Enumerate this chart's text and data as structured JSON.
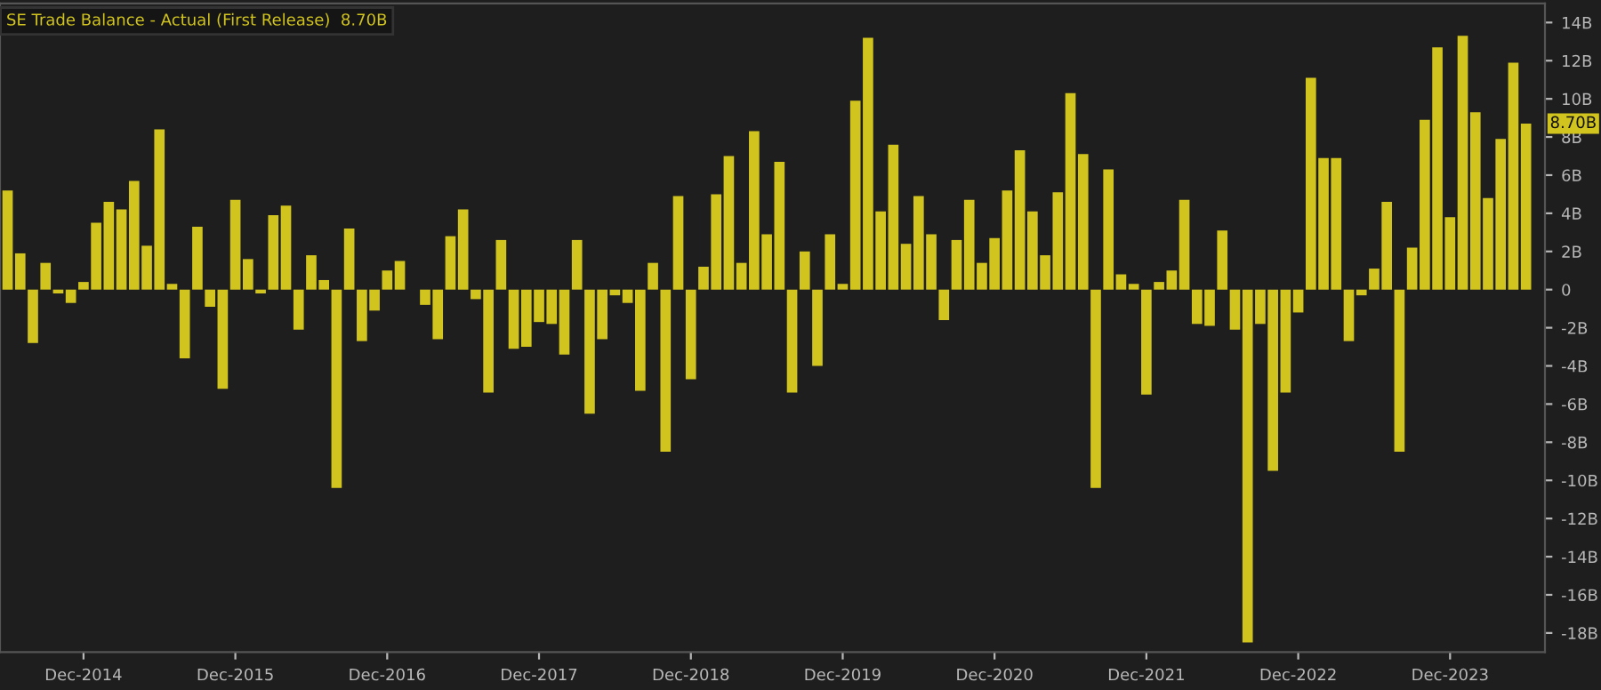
{
  "chart_data": {
    "type": "bar",
    "categories": [
      null,
      null,
      null,
      null,
      null,
      null,
      "Dec-2014",
      null,
      null,
      null,
      null,
      null,
      null,
      null,
      null,
      null,
      null,
      null,
      "Dec-2015",
      null,
      null,
      null,
      null,
      null,
      null,
      null,
      null,
      null,
      null,
      null,
      "Dec-2016",
      null,
      null,
      null,
      null,
      null,
      null,
      null,
      null,
      null,
      null,
      null,
      "Dec-2017",
      null,
      null,
      null,
      null,
      null,
      null,
      null,
      null,
      null,
      null,
      null,
      "Dec-2018",
      null,
      null,
      null,
      null,
      null,
      null,
      null,
      null,
      null,
      null,
      null,
      "Dec-2019",
      null,
      null,
      null,
      null,
      null,
      null,
      null,
      null,
      null,
      null,
      null,
      "Dec-2020",
      null,
      null,
      null,
      null,
      null,
      null,
      null,
      null,
      null,
      null,
      null,
      "Dec-2021",
      null,
      null,
      null,
      null,
      null,
      null,
      null,
      null,
      null,
      null,
      null,
      "Dec-2022",
      null,
      null,
      null,
      null,
      null,
      null,
      null,
      null,
      null,
      null,
      null,
      "Dec-2023",
      null,
      null,
      null,
      null,
      null,
      null
    ],
    "series": [
      {
        "name": "SE Trade Balance - Actual (First Release)",
        "color": "#d2c41f",
        "values": [
          5.2,
          1.9,
          -2.8,
          1.4,
          -0.2,
          -0.7,
          0.4,
          3.5,
          4.6,
          4.2,
          5.7,
          2.3,
          8.4,
          0.3,
          -3.6,
          3.3,
          -0.9,
          -5.2,
          4.7,
          1.6,
          -0.2,
          3.9,
          4.4,
          -2.1,
          1.8,
          0.5,
          -10.4,
          3.2,
          -2.7,
          -1.1,
          1.0,
          1.5,
          null,
          -0.8,
          -2.6,
          2.8,
          4.2,
          -0.5,
          -5.4,
          2.6,
          -3.1,
          -3.0,
          -1.7,
          -1.8,
          -3.4,
          2.6,
          -6.5,
          -2.6,
          -0.3,
          -0.7,
          -5.3,
          1.4,
          -8.5,
          4.9,
          -4.7,
          1.2,
          5.0,
          7.0,
          1.4,
          8.3,
          2.9,
          6.7,
          -5.4,
          2.0,
          -4.0,
          2.9,
          0.3,
          9.9,
          13.2,
          4.1,
          7.6,
          2.4,
          4.9,
          2.9,
          -1.6,
          2.6,
          4.7,
          1.4,
          2.7,
          5.2,
          7.3,
          4.1,
          1.8,
          5.1,
          10.3,
          7.1,
          -10.4,
          6.3,
          0.8,
          0.3,
          -5.5,
          0.4,
          1.0,
          4.7,
          -1.8,
          -1.9,
          3.1,
          -2.1,
          -18.5,
          -1.8,
          -9.5,
          -5.4,
          -1.2,
          11.1,
          6.9,
          6.9,
          -2.7,
          -0.3,
          1.1,
          4.6,
          -8.5,
          2.2,
          8.9,
          12.7,
          3.8,
          13.3,
          9.3,
          4.8,
          7.9,
          11.9,
          8.7
        ]
      }
    ],
    "ylim": [
      -19,
      15
    ],
    "yticks": [
      {
        "value": -18,
        "label": "-18B"
      },
      {
        "value": -16,
        "label": "-16B"
      },
      {
        "value": -14,
        "label": "-14B"
      },
      {
        "value": -12,
        "label": "-12B"
      },
      {
        "value": -10,
        "label": "-10B"
      },
      {
        "value": -8,
        "label": "-8B"
      },
      {
        "value": -6,
        "label": "-6B"
      },
      {
        "value": -4,
        "label": "-4B"
      },
      {
        "value": -2,
        "label": "-2B"
      },
      0,
      {
        "value": 2,
        "label": "2B"
      },
      {
        "value": 4,
        "label": "4B"
      },
      {
        "value": 6,
        "label": "6B"
      },
      {
        "value": 8,
        "label": "8B"
      },
      {
        "value": 10,
        "label": "10B"
      },
      {
        "value": 12,
        "label": "12B"
      },
      {
        "value": 14,
        "label": "14B"
      }
    ],
    "annotations": [
      "8.70B",
      {
        "text": "8.70B",
        "y": 8.7
      }
    ],
    "grid": false
  }
}
